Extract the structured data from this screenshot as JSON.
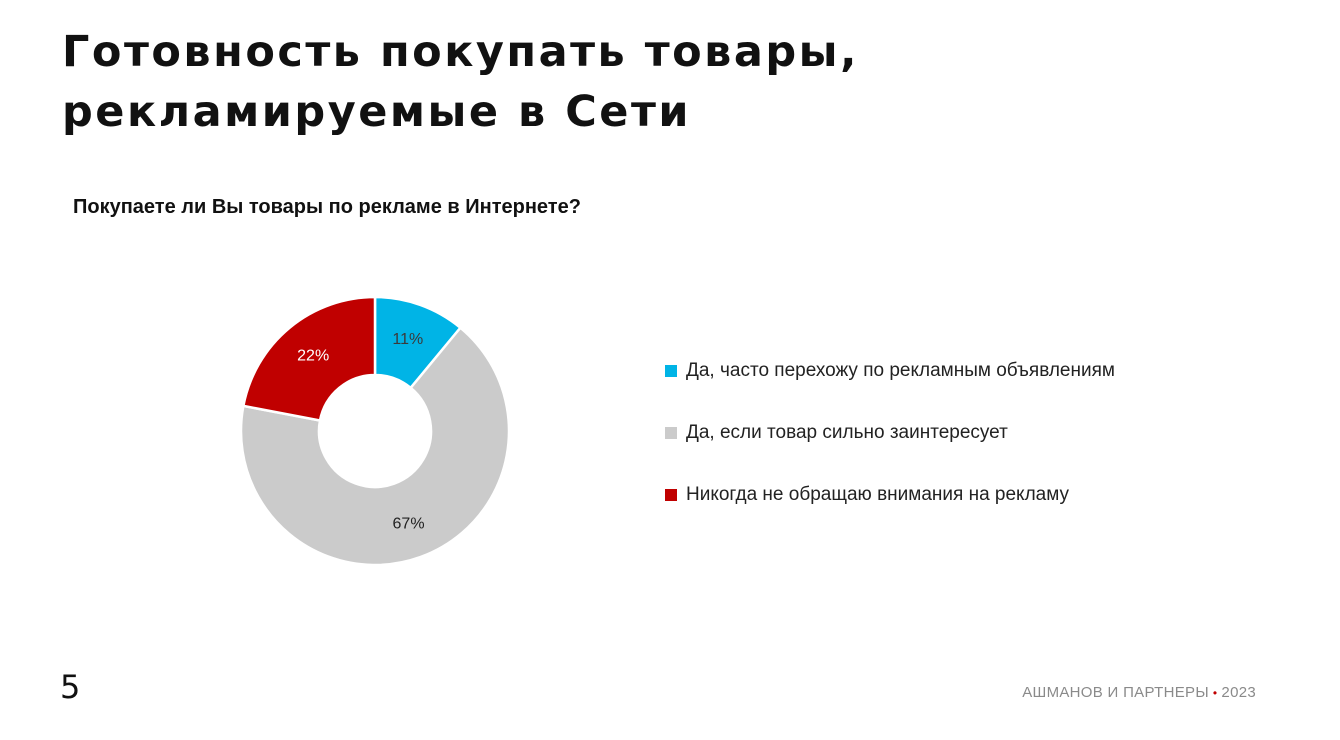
{
  "title_lines": [
    "Готовность покупать товары,",
    "рекламируемые в Сети"
  ],
  "question": "Покупаете ли Вы товары по рекламе в Интернете?",
  "page_number": "5",
  "footer": {
    "company": "АШМАНОВ И ПАРТНЕРЫ",
    "dot": "•",
    "year": "2023"
  },
  "colors": {
    "accent": "#c00000"
  },
  "chart_data": {
    "type": "pie",
    "donut": true,
    "title": "Покупаете ли Вы товары по рекламе в Интернете?",
    "legend_position": "right",
    "slices": [
      {
        "label": "Да, часто перехожу по рекламным объявлениям",
        "value": 11,
        "value_label": "11%",
        "color": "#00b4e6",
        "text_color": "#3a3a3a"
      },
      {
        "label": "Да, если товар сильно заинтересует",
        "value": 67,
        "value_label": "67%",
        "color": "#cbcbcb",
        "text_color": "#222222"
      },
      {
        "label": "Никогда не обращаю внимания на рекламу",
        "value": 22,
        "value_label": "22%",
        "color": "#c00000",
        "text_color": "#ffffff"
      }
    ]
  }
}
